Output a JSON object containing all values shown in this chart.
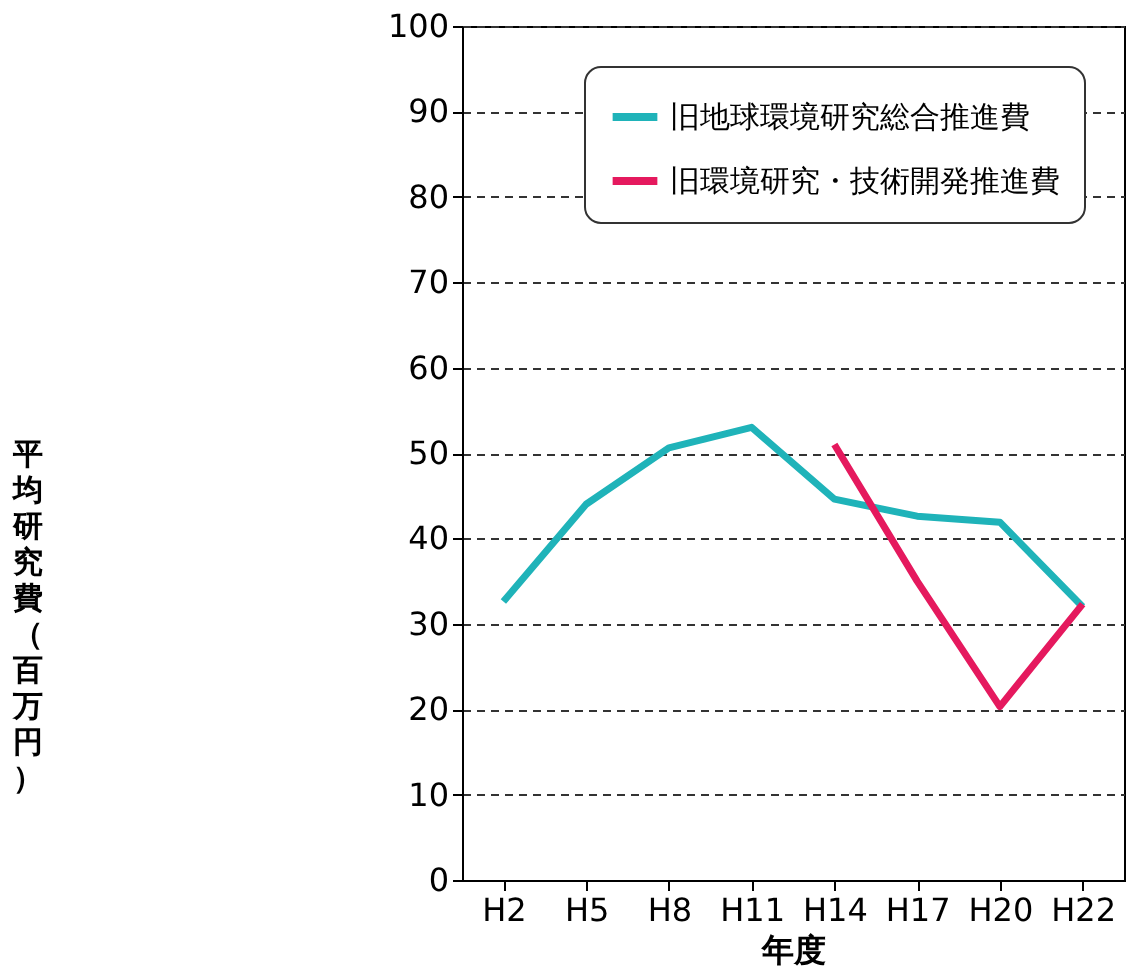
{
  "chart_data": {
    "type": "line",
    "xlabel": "年度",
    "ylabel": "平均研究費（百万円）",
    "categories": [
      "H2",
      "H5",
      "H8",
      "H11",
      "H14",
      "H17",
      "H20",
      "H22"
    ],
    "series": [
      {
        "name": "旧地球環境研究総合推進費",
        "color": "#1fb3b9",
        "values": [
          32.6,
          44,
          50.6,
          53,
          44.6,
          42.6,
          41.9,
          32
        ]
      },
      {
        "name": "旧環境研究・技術開発推進費",
        "color": "#e5195e",
        "values": [
          null,
          null,
          null,
          null,
          51,
          35,
          20.3,
          32.3
        ]
      }
    ],
    "ylim": [
      0,
      100
    ],
    "yticks": [
      0,
      10,
      20,
      30,
      40,
      50,
      60,
      70,
      80,
      90,
      100
    ],
    "grid": "y",
    "legend": "top right",
    "marker": "none",
    "line_style": "solid"
  }
}
